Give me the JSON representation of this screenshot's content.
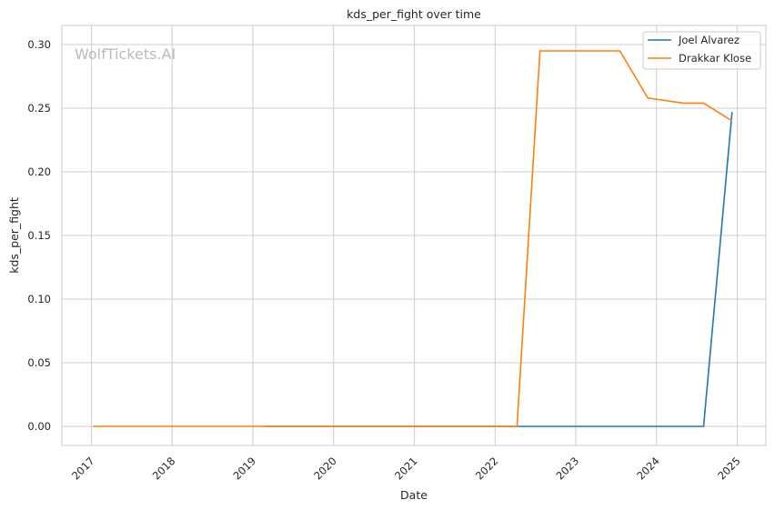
{
  "chart_data": {
    "type": "line",
    "title": "kds_per_fight over time",
    "xlabel": "Date",
    "ylabel": "kds_per_fight",
    "watermark": "WolfTickets.AI",
    "xlim": [
      "2016-08-20",
      "2025-05-10"
    ],
    "ylim": [
      -0.015,
      0.315
    ],
    "x_ticks": [
      "2017",
      "2018",
      "2019",
      "2020",
      "2021",
      "2022",
      "2023",
      "2024",
      "2025"
    ],
    "y_ticks": [
      "0.00",
      "0.05",
      "0.10",
      "0.15",
      "0.20",
      "0.25",
      "0.30"
    ],
    "grid": true,
    "legend_position": "top-right",
    "series": [
      {
        "name": "Joel Alvarez",
        "color": "#1f77b4",
        "points": [
          {
            "x": "2019-02-17",
            "y": 0.0
          },
          {
            "x": "2022-04-10",
            "y": 0.0
          },
          {
            "x": "2024-08-01",
            "y": 0.0
          },
          {
            "x": "2024-12-08",
            "y": 0.247
          }
        ]
      },
      {
        "name": "Drakkar Klose",
        "color": "#ff7f0e",
        "points": [
          {
            "x": "2017-01-08",
            "y": 0.0
          },
          {
            "x": "2022-04-10",
            "y": 0.0
          },
          {
            "x": "2022-07-23",
            "y": 0.295
          },
          {
            "x": "2023-07-19",
            "y": 0.295
          },
          {
            "x": "2023-11-23",
            "y": 0.258
          },
          {
            "x": "2024-04-30",
            "y": 0.254
          },
          {
            "x": "2024-08-01",
            "y": 0.254
          },
          {
            "x": "2024-12-08",
            "y": 0.24
          }
        ]
      }
    ]
  }
}
